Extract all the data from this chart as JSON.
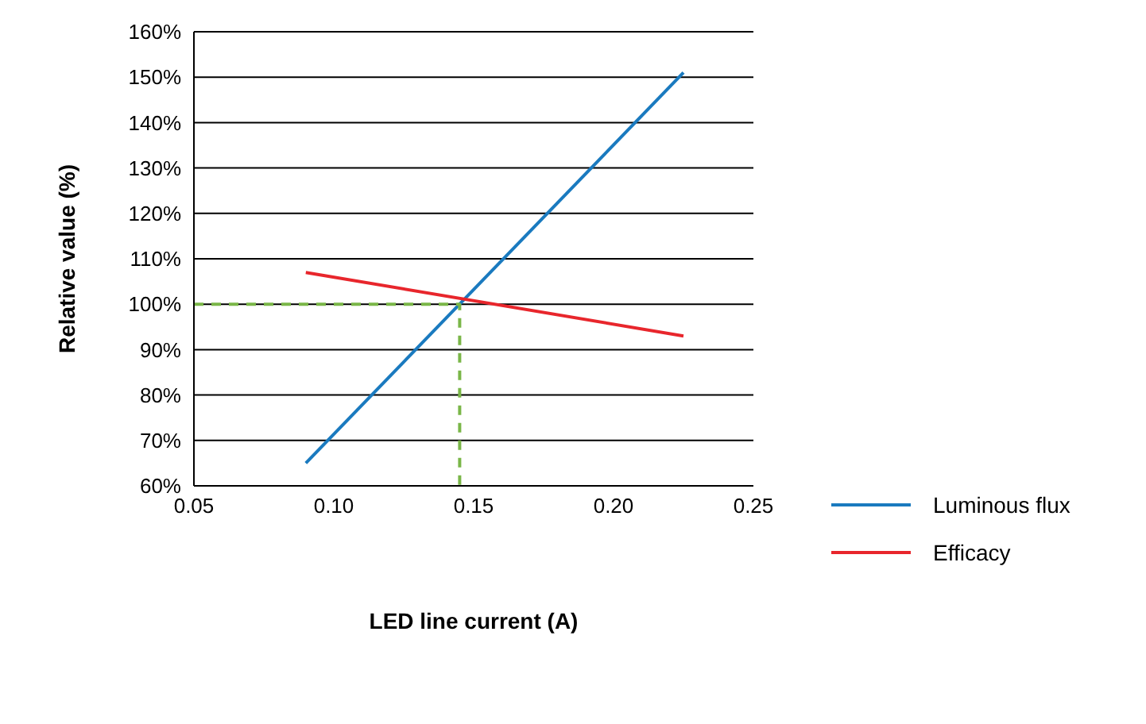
{
  "chart_data": {
    "type": "line",
    "xlabel": "LED line current (A)",
    "ylabel": "Relative value (%)",
    "xlim": [
      0.05,
      0.25
    ],
    "xticks": [
      {
        "value": 0.05,
        "label": "0.05"
      },
      {
        "value": 0.1,
        "label": "0.10"
      },
      {
        "value": 0.15,
        "label": "0.15"
      },
      {
        "value": 0.2,
        "label": "0.20"
      },
      {
        "value": 0.25,
        "label": "0.25"
      }
    ],
    "ylim": [
      60,
      160
    ],
    "yticks": [
      {
        "value": 60,
        "label": "60%"
      },
      {
        "value": 70,
        "label": "70%"
      },
      {
        "value": 80,
        "label": "80%"
      },
      {
        "value": 90,
        "label": "90%"
      },
      {
        "value": 100,
        "label": "100%"
      },
      {
        "value": 110,
        "label": "110%"
      },
      {
        "value": 120,
        "label": "120%"
      },
      {
        "value": 130,
        "label": "130%"
      },
      {
        "value": 140,
        "label": "140%"
      },
      {
        "value": 150,
        "label": "150%"
      },
      {
        "value": 160,
        "label": "160%"
      }
    ],
    "grid": "y",
    "legend": "right",
    "marker": "none",
    "series": [
      {
        "name": "Luminous flux",
        "color": "#1a7abf",
        "x": [
          0.09,
          0.225
        ],
        "values": [
          65,
          151
        ]
      },
      {
        "name": "Efficacy",
        "color": "#e8262c",
        "x": [
          0.09,
          0.225
        ],
        "values": [
          107,
          93
        ]
      },
      {
        "color": "#7ab648",
        "line_style": "dashed",
        "x": [
          0.05,
          0.145,
          0.145
        ],
        "values": [
          100,
          100,
          60
        ]
      }
    ]
  }
}
